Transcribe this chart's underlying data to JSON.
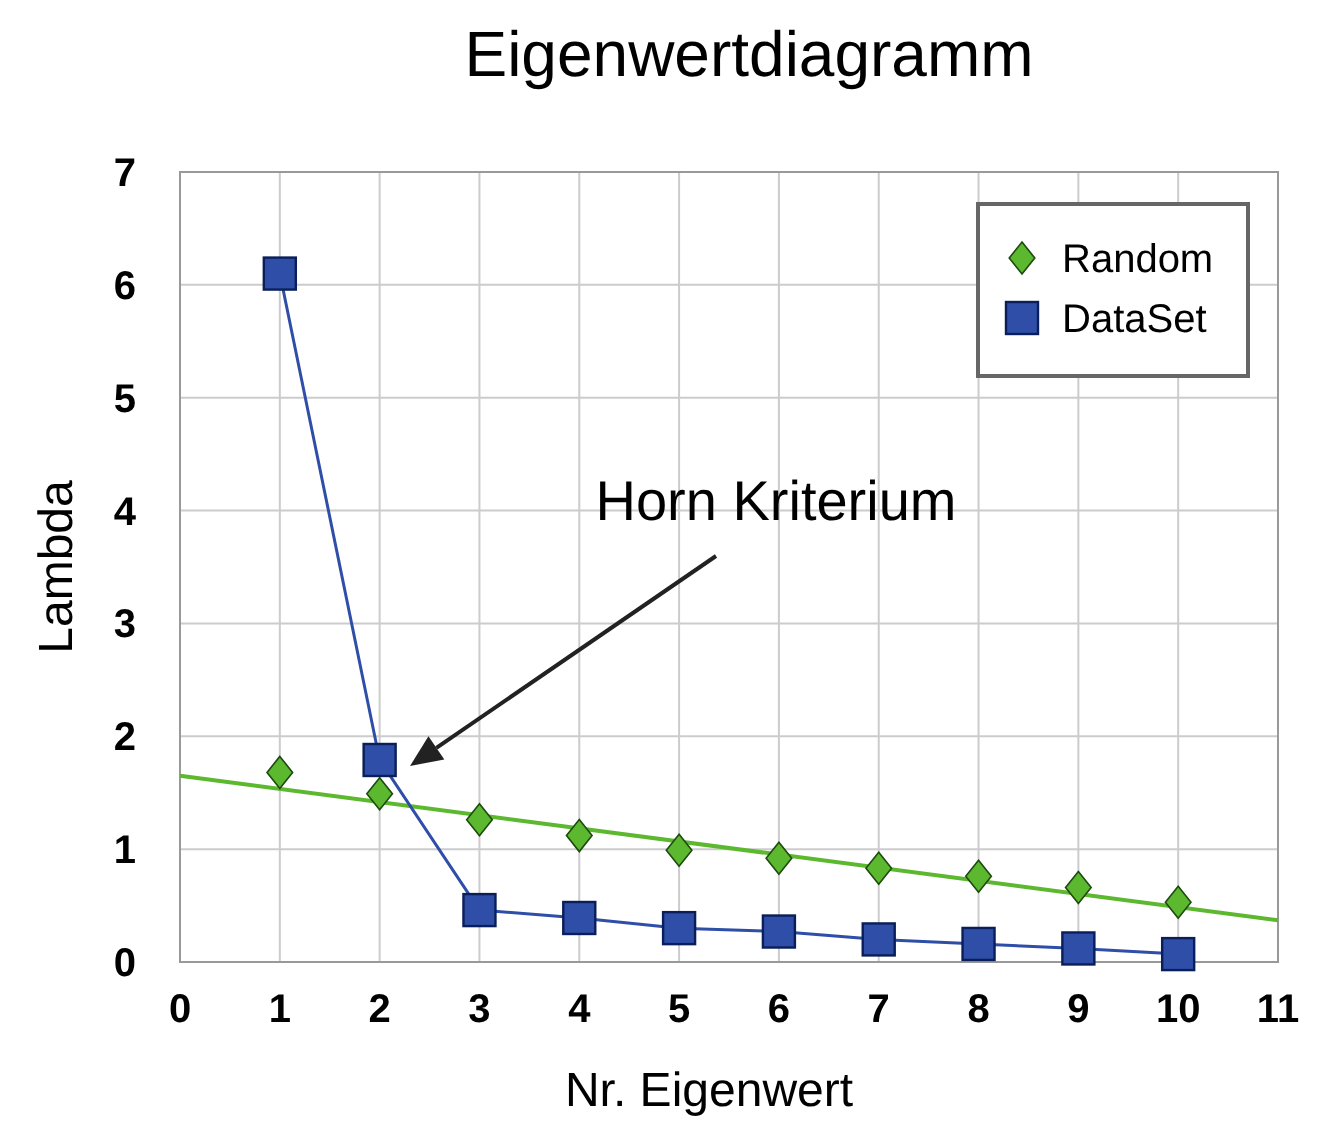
{
  "chart_data": {
    "type": "line",
    "title": "Eigenwertdiagramm",
    "xlabel": "Nr. Eigenwert",
    "ylabel": "Lambda",
    "xlim": [
      0,
      11
    ],
    "xticks": [
      0,
      1,
      2,
      3,
      4,
      5,
      6,
      7,
      8,
      9,
      10,
      11
    ],
    "ylim": [
      0,
      7
    ],
    "yticks": [
      0,
      1,
      2,
      3,
      4,
      5,
      6,
      7
    ],
    "grid": true,
    "legend": "top right",
    "annotations": [
      "Horn Kriterium"
    ],
    "series": [
      {
        "name": "Random",
        "type": "scatter",
        "color": "#5cb82e",
        "marker": "diamond",
        "x": [
          1,
          2,
          3,
          4,
          5,
          6,
          7,
          8,
          9,
          10
        ],
        "values": [
          1.68,
          1.49,
          1.26,
          1.12,
          0.99,
          0.92,
          0.83,
          0.76,
          0.66,
          0.53
        ]
      },
      {
        "name": "DataSet",
        "color": "#2e4ea8",
        "marker": "square",
        "x": [
          1,
          2,
          3,
          4,
          5,
          6,
          7,
          8,
          9,
          10
        ],
        "values": [
          6.1,
          1.79,
          0.46,
          0.39,
          0.3,
          0.27,
          0.2,
          0.16,
          0.12,
          0.07
        ]
      },
      {
        "type": "line",
        "color": "#5cb82e",
        "marker": "none",
        "x": [
          0,
          11
        ],
        "values": [
          1.65,
          0.37
        ]
      }
    ]
  }
}
